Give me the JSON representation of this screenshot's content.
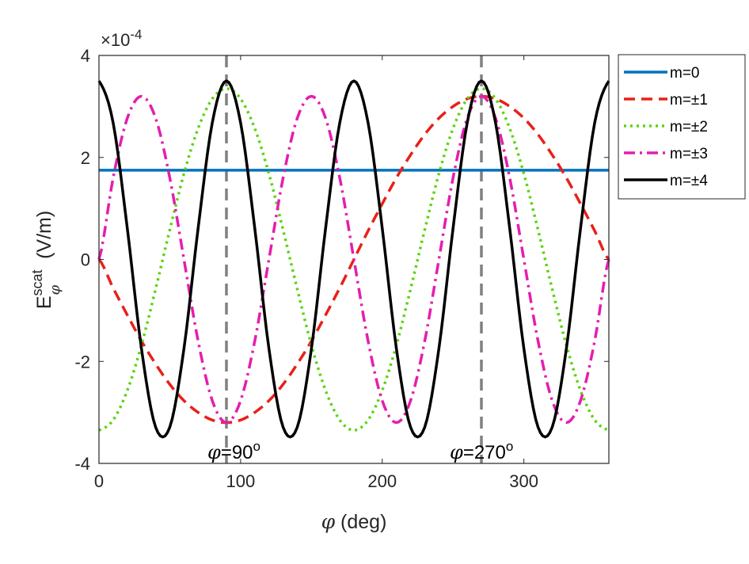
{
  "chart_data": {
    "type": "line",
    "xlabel_symbol": "φ",
    "xlabel_text": " (deg)",
    "ylabel_main": "E",
    "ylabel_sup": "scat",
    "ylabel_sub": "φ",
    "ylabel_unit": " (V/m)",
    "y_exponent_text": "×10",
    "y_exponent_power": "-4",
    "xlim": [
      0,
      360
    ],
    "ylim": [
      -4,
      4
    ],
    "xticks": [
      0,
      100,
      200,
      300
    ],
    "xtick_labels": [
      "0",
      "100",
      "200",
      "300"
    ],
    "yticks": [
      -4,
      -2,
      0,
      2,
      4
    ],
    "ytick_labels": [
      "-4",
      "-2",
      "0",
      "2",
      "4"
    ],
    "grid": false,
    "legend_position": "outside-top-right",
    "x_samples": [
      0,
      10,
      20,
      30,
      40,
      50,
      60,
      70,
      80,
      90,
      100,
      110,
      120,
      130,
      140,
      150,
      160,
      170,
      180,
      190,
      200,
      210,
      220,
      230,
      240,
      250,
      260,
      270,
      280,
      290,
      300,
      310,
      320,
      330,
      340,
      350,
      360
    ],
    "series": [
      {
        "name": "m=0",
        "color": "#0072BD",
        "dash": "solid",
        "values": [
          1.75,
          1.75,
          1.75,
          1.75,
          1.75,
          1.75,
          1.75,
          1.75,
          1.75,
          1.75,
          1.75,
          1.75,
          1.75,
          1.75,
          1.75,
          1.75,
          1.75,
          1.75,
          1.75,
          1.75,
          1.75,
          1.75,
          1.75,
          1.75,
          1.75,
          1.75,
          1.75,
          1.75,
          1.75,
          1.75,
          1.75,
          1.75,
          1.75,
          1.75,
          1.75,
          1.75,
          1.75
        ]
      },
      {
        "name": "m=±1",
        "color": "#E8201A",
        "dash": "dashed",
        "values": [
          0.0,
          -0.56,
          -1.09,
          -1.6,
          -2.05,
          -2.45,
          -2.77,
          -3.0,
          -3.15,
          -3.2,
          -3.15,
          -3.0,
          -2.77,
          -2.45,
          -2.05,
          -1.6,
          -1.09,
          -0.56,
          0.0,
          0.56,
          1.09,
          1.6,
          2.05,
          2.45,
          2.77,
          3.0,
          3.15,
          3.2,
          3.15,
          3.0,
          2.77,
          2.45,
          2.05,
          1.6,
          1.09,
          0.56,
          0.0
        ]
      },
      {
        "name": "m=±2",
        "color": "#5BD40F",
        "dash": "dotted",
        "values": [
          -3.35,
          -3.15,
          -2.57,
          -1.68,
          -0.58,
          0.58,
          1.68,
          2.57,
          3.15,
          3.35,
          3.15,
          2.57,
          1.68,
          0.58,
          -0.58,
          -1.68,
          -2.57,
          -3.15,
          -3.35,
          -3.15,
          -2.57,
          -1.68,
          -0.58,
          0.58,
          1.68,
          2.57,
          3.15,
          3.35,
          3.15,
          2.57,
          1.68,
          0.58,
          -0.58,
          -1.68,
          -2.57,
          -3.15,
          -3.35
        ]
      },
      {
        "name": "m=±3",
        "color": "#E41EAF",
        "dash": "dashdot",
        "values": [
          0.0,
          1.6,
          2.77,
          3.2,
          2.77,
          1.6,
          0.0,
          -1.6,
          -2.77,
          -3.2,
          -2.77,
          -1.6,
          0.0,
          1.6,
          2.77,
          3.2,
          2.77,
          1.6,
          0.0,
          -1.6,
          -2.77,
          -3.2,
          -2.77,
          -1.6,
          0.0,
          1.6,
          2.77,
          3.2,
          2.77,
          1.6,
          0.0,
          -1.6,
          -2.77,
          -3.2,
          -2.77,
          -1.6,
          0.0
        ]
      },
      {
        "name": "m=±4",
        "color": "#000000",
        "dash": "solid",
        "values": [
          3.5,
          2.68,
          0.61,
          -1.75,
          -3.29,
          -3.29,
          -1.75,
          0.61,
          2.68,
          3.5,
          2.68,
          0.61,
          -1.75,
          -3.29,
          -3.29,
          -1.75,
          0.61,
          2.68,
          3.5,
          2.68,
          0.61,
          -1.75,
          -3.29,
          -3.29,
          -1.75,
          0.61,
          2.68,
          3.5,
          2.68,
          0.61,
          -1.75,
          -3.29,
          -3.29,
          -1.75,
          0.61,
          2.68,
          3.5
        ]
      }
    ],
    "reference_lines": [
      {
        "x": 90,
        "color": "#808080",
        "label_symbol": "φ",
        "label_text": "=90",
        "label_sup": "o"
      },
      {
        "x": 270,
        "color": "#808080",
        "label_symbol": "φ",
        "label_text": "=270",
        "label_sup": "o"
      }
    ]
  }
}
